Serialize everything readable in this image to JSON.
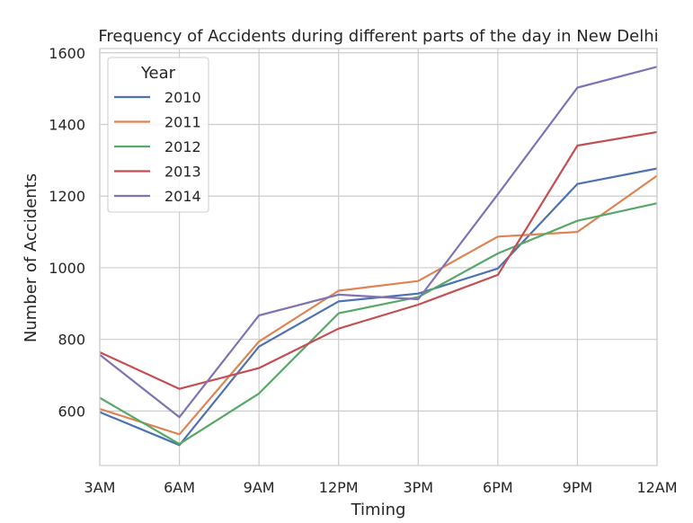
{
  "chart_data": {
    "type": "line",
    "title": "Frequency of Accidents during different parts of the day in New Delhi",
    "xlabel": "Timing",
    "ylabel": "Number of Accidents",
    "categories": [
      "3AM",
      "6AM",
      "9AM",
      "12PM",
      "3PM",
      "6PM",
      "9PM",
      "12AM"
    ],
    "y_ticks": [
      600,
      800,
      1000,
      1200,
      1400,
      1600
    ],
    "ylim": [
      448,
      1612
    ],
    "grid": true,
    "legend": {
      "title": "Year",
      "position": "top-left"
    },
    "series": [
      {
        "name": "2010",
        "color": "#4c72b0",
        "values": [
          597,
          505,
          780,
          906,
          928,
          998,
          1234,
          1277
        ]
      },
      {
        "name": "2011",
        "color": "#dd8452",
        "values": [
          606,
          535,
          794,
          936,
          963,
          1087,
          1100,
          1257
        ]
      },
      {
        "name": "2012",
        "color": "#55a868",
        "values": [
          637,
          508,
          649,
          873,
          918,
          1040,
          1131,
          1180
        ]
      },
      {
        "name": "2013",
        "color": "#c44e52",
        "values": [
          764,
          662,
          720,
          830,
          897,
          980,
          1341,
          1379
        ]
      },
      {
        "name": "2014",
        "color": "#8172b3",
        "values": [
          757,
          583,
          867,
          925,
          912,
          1205,
          1503,
          1561
        ]
      }
    ]
  }
}
